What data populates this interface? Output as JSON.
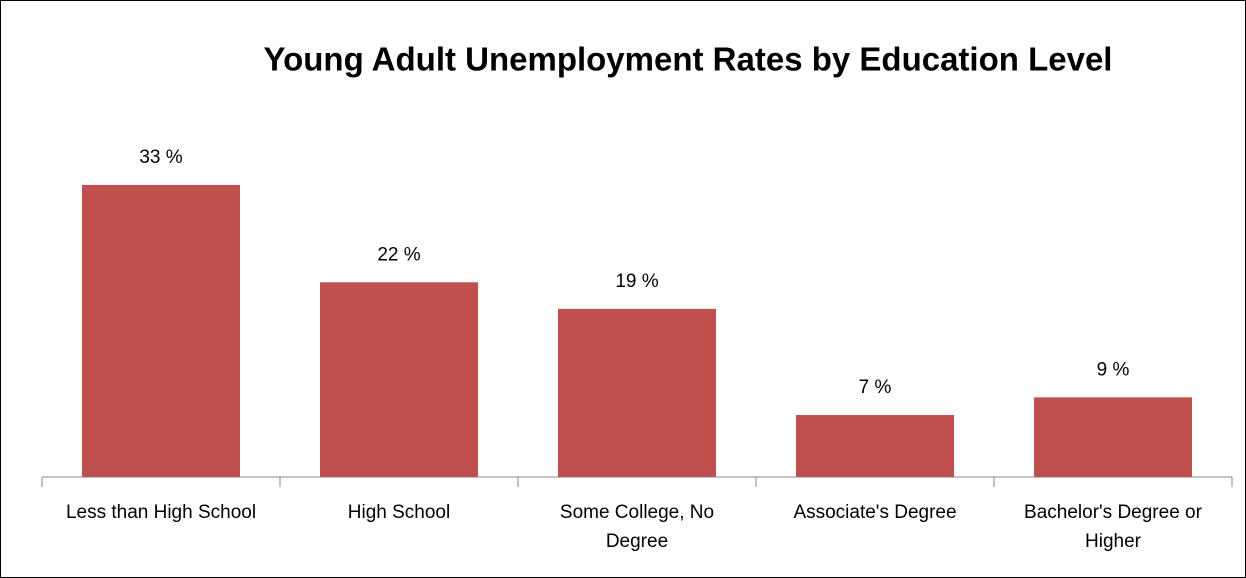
{
  "chart_data": {
    "type": "bar",
    "title": "Young Adult Unemployment Rates by Education Level",
    "categories": [
      "Less than High School",
      "High School",
      "Some College, No Degree",
      "Associate's Degree",
      "Bachelor's Degree or Higher"
    ],
    "values": [
      33,
      22,
      19,
      7,
      9
    ],
    "value_labels": [
      "33 %",
      "22 %",
      "19 %",
      "7 %",
      "9 %"
    ],
    "color": "#c0504d",
    "ylim": [
      0,
      40
    ]
  }
}
